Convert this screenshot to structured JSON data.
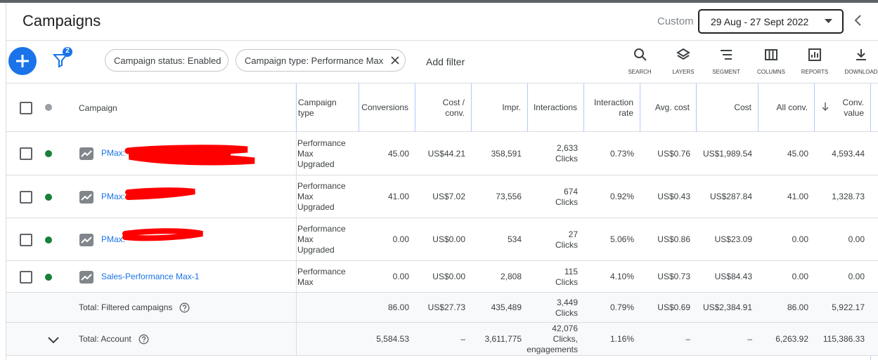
{
  "header": {
    "title": "Campaigns",
    "date_label": "Custom",
    "date_range": "29 Aug - 27 Sept 2022"
  },
  "toolbar": {
    "filter_count": 2,
    "filters": [
      "Campaign status: Enabled",
      "Campaign type: Performance Max"
    ],
    "add_filter": "Add filter",
    "tools": [
      "SEARCH",
      "LAYERS",
      "SEGMENT",
      "COLUMNS",
      "REPORTS",
      "DOWNLOAD"
    ]
  },
  "table": {
    "columns": [
      "Campaign",
      "Campaign type",
      "Conversions",
      "Cost / conv.",
      "Impr.",
      "Interactions",
      "Interaction rate",
      "Avg. cost",
      "Cost",
      "All conv.",
      "Conv. value"
    ],
    "rows": [
      {
        "campaign": "PMax:",
        "type": "Performance Max Upgraded",
        "cells": [
          "45.00",
          "US$44.21",
          "358,591",
          [
            "2,633",
            "Clicks"
          ],
          "0.73%",
          "US$0.76",
          "US$1,989.54",
          "45.00",
          "4,593.44"
        ]
      },
      {
        "campaign": "PMax:",
        "type": "Performance Max Upgraded",
        "cells": [
          "41.00",
          "US$7.02",
          "73,556",
          [
            "674",
            "Clicks"
          ],
          "0.92%",
          "US$0.43",
          "US$287.84",
          "41.00",
          "1,328.73"
        ]
      },
      {
        "campaign": "PMax:",
        "type": "Performance Max Upgraded",
        "cells": [
          "0.00",
          "US$0.00",
          "534",
          [
            "27",
            "Clicks"
          ],
          "5.06%",
          "US$0.86",
          "US$23.09",
          "0.00",
          "0.00"
        ]
      },
      {
        "campaign": "Sales-Performance Max-1",
        "type": "Performance Max",
        "cells": [
          "0.00",
          "US$0.00",
          "2,808",
          [
            "115",
            "Clicks"
          ],
          "4.10%",
          "US$0.73",
          "US$84.43",
          "0.00",
          "0.00"
        ]
      }
    ],
    "totals": [
      {
        "label": "Total: Filtered campaigns",
        "cells": [
          "86.00",
          "US$27.73",
          "435,489",
          [
            "3,449",
            "Clicks"
          ],
          "0.79%",
          "US$0.69",
          "US$2,384.91",
          "86.00",
          "5,922.17"
        ]
      },
      {
        "label": "Total: Account",
        "cells": [
          "5,584.53",
          "–",
          "3,611,775",
          [
            "42,076",
            "Clicks,",
            "engagements"
          ],
          "1.16%",
          "–",
          "–",
          "6,263.92",
          "115,386.33"
        ]
      }
    ]
  }
}
